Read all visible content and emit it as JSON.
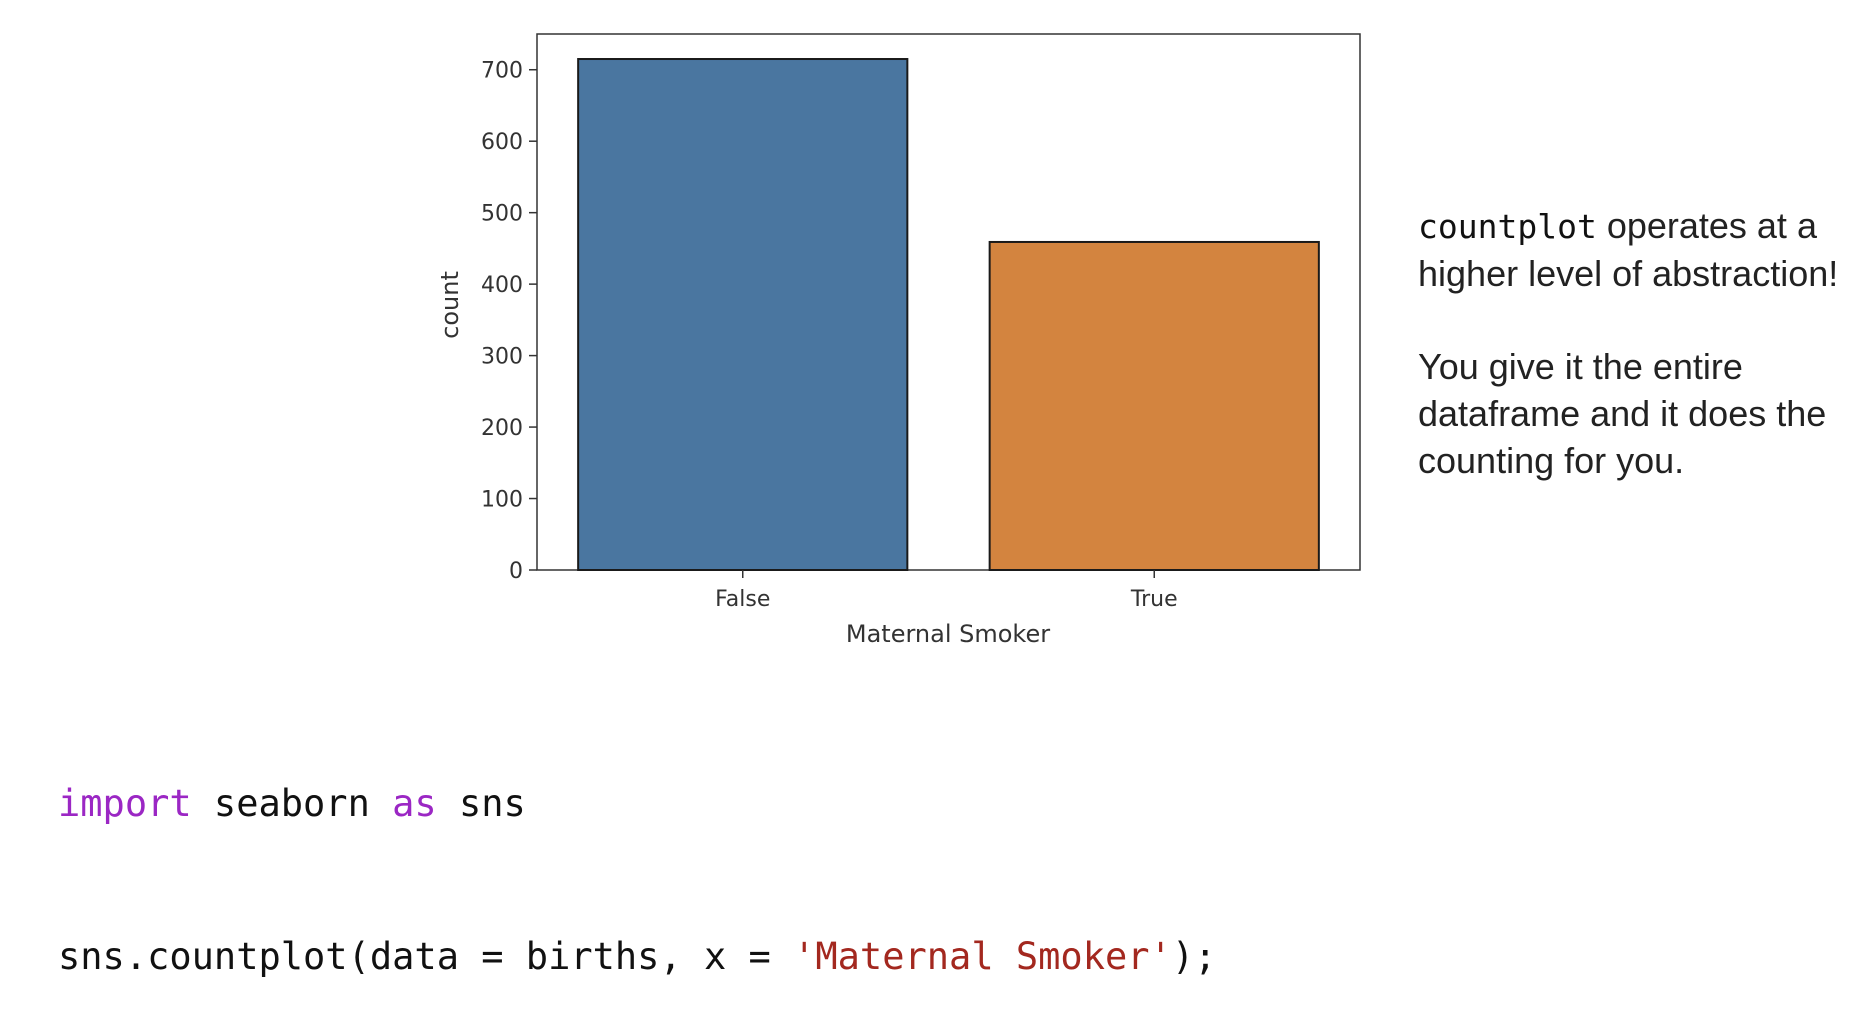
{
  "chart_data": {
    "type": "bar",
    "categories": [
      "False",
      "True"
    ],
    "values": [
      715,
      459
    ],
    "colors": [
      "#4a76a0",
      "#d3843f"
    ],
    "title": "",
    "xlabel": "Maternal Smoker",
    "ylabel": "count",
    "ylim": [
      0,
      750
    ],
    "yticks": [
      0,
      100,
      200,
      300,
      400,
      500,
      600,
      700
    ],
    "grid": false,
    "legend": "none"
  },
  "side_note": {
    "code_word": "countplot",
    "line1_rest": " operates at a higher level of abstraction!",
    "paragraph2": "You give it the entire dataframe and it does the counting for you."
  },
  "code": {
    "line1": {
      "kw1": "import",
      "mid": " seaborn ",
      "kw2": "as",
      "end": " sns"
    },
    "line2": {
      "start": "sns.countplot(data = births, x = ",
      "str": "'Maternal Smoker'",
      "end": ");"
    }
  }
}
